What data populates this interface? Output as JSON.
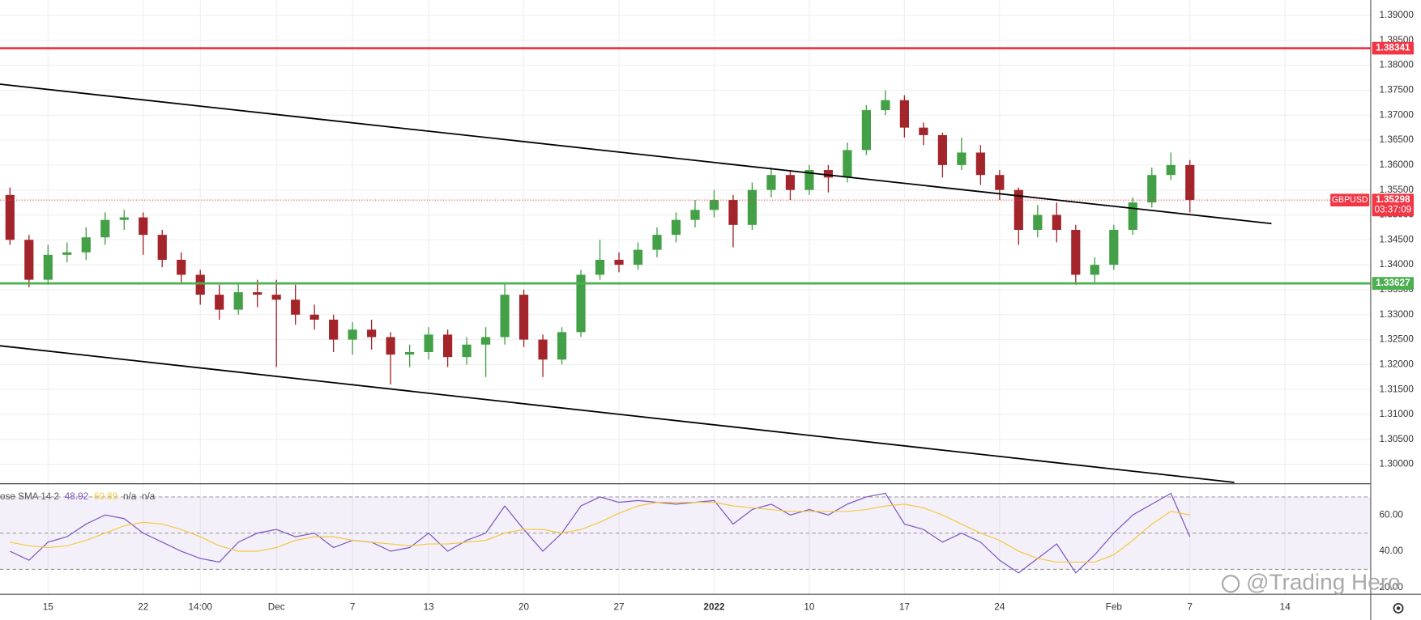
{
  "chart_data": [
    {
      "type": "candlestick",
      "symbol": "GBPUSD",
      "countdown": "03:37:09",
      "categories": [
        null,
        null,
        "15",
        null,
        null,
        null,
        null,
        "22",
        null,
        null,
        "14:00",
        null,
        null,
        null,
        "Dec",
        null,
        null,
        null,
        "7",
        null,
        null,
        null,
        "13",
        null,
        null,
        null,
        null,
        "20",
        null,
        null,
        null,
        null,
        "27",
        null,
        null,
        null,
        null,
        "2022",
        null,
        null,
        null,
        null,
        "10",
        null,
        null,
        null,
        null,
        "17",
        null,
        null,
        null,
        null,
        "24",
        null,
        null,
        null,
        null,
        null,
        "Feb",
        null,
        null,
        null,
        "7",
        null,
        null,
        null,
        null,
        "14"
      ],
      "open": [
        1.354,
        1.345,
        1.337,
        1.342,
        1.3425,
        1.3455,
        1.349,
        1.3495,
        1.346,
        1.341,
        1.338,
        1.334,
        1.331,
        1.3345,
        1.334,
        1.333,
        1.33,
        1.329,
        1.325,
        1.327,
        1.3255,
        1.322,
        1.3225,
        1.326,
        1.3215,
        1.324,
        1.3255,
        1.334,
        1.325,
        1.321,
        1.3265,
        1.338,
        1.341,
        1.34,
        1.343,
        1.346,
        1.349,
        1.351,
        1.353,
        1.348,
        1.355,
        1.358,
        1.355,
        1.359,
        1.3575,
        1.363,
        1.371,
        1.373,
        1.3675,
        1.366,
        1.36,
        1.3625,
        1.358,
        1.355,
        1.347,
        1.35,
        1.347,
        1.338,
        1.34,
        1.347,
        1.3525,
        1.358,
        1.36,
        null,
        null,
        null,
        null,
        null
      ],
      "high": [
        1.3555,
        1.346,
        1.344,
        1.3445,
        1.3475,
        1.3505,
        1.351,
        1.3505,
        1.347,
        1.3425,
        1.339,
        1.336,
        1.3365,
        1.337,
        1.337,
        1.336,
        1.332,
        1.33,
        1.3285,
        1.329,
        1.3265,
        1.324,
        1.3275,
        1.327,
        1.3255,
        1.3275,
        1.3365,
        1.335,
        1.326,
        1.3275,
        1.339,
        1.345,
        1.3425,
        1.3445,
        1.3475,
        1.3505,
        1.353,
        1.355,
        1.354,
        1.3565,
        1.3595,
        1.359,
        1.36,
        1.36,
        1.3645,
        1.372,
        1.375,
        1.374,
        1.3685,
        1.3665,
        1.3655,
        1.364,
        1.359,
        1.3555,
        1.352,
        1.3525,
        1.348,
        1.3415,
        1.348,
        1.3535,
        1.3595,
        1.3625,
        1.361,
        null,
        null,
        null,
        null,
        null
      ],
      "low": [
        1.344,
        1.3355,
        1.336,
        1.3405,
        1.341,
        1.344,
        1.347,
        1.342,
        1.3395,
        1.3365,
        1.332,
        1.329,
        1.33,
        1.3315,
        1.3195,
        1.328,
        1.327,
        1.3225,
        1.322,
        1.323,
        1.316,
        1.3195,
        1.321,
        1.3195,
        1.32,
        1.3175,
        1.324,
        1.3235,
        1.3175,
        1.32,
        1.3255,
        1.337,
        1.3385,
        1.339,
        1.3415,
        1.3445,
        1.3475,
        1.3495,
        1.3435,
        1.347,
        1.3535,
        1.353,
        1.354,
        1.3545,
        1.3565,
        1.362,
        1.37,
        1.3655,
        1.364,
        1.3575,
        1.359,
        1.356,
        1.353,
        1.344,
        1.3455,
        1.3445,
        1.336,
        1.3365,
        1.339,
        1.346,
        1.3515,
        1.357,
        1.3505,
        null,
        null,
        null,
        null,
        null
      ],
      "close": [
        1.345,
        1.337,
        1.342,
        1.3425,
        1.3455,
        1.349,
        1.3495,
        1.346,
        1.341,
        1.338,
        1.334,
        1.331,
        1.3345,
        1.334,
        1.333,
        1.33,
        1.329,
        1.325,
        1.327,
        1.3255,
        1.322,
        1.3225,
        1.326,
        1.3215,
        1.324,
        1.3255,
        1.334,
        1.325,
        1.321,
        1.3265,
        1.338,
        1.341,
        1.34,
        1.343,
        1.346,
        1.349,
        1.351,
        1.353,
        1.348,
        1.355,
        1.358,
        1.355,
        1.359,
        1.3575,
        1.363,
        1.371,
        1.373,
        1.3675,
        1.366,
        1.36,
        1.3625,
        1.358,
        1.355,
        1.347,
        1.35,
        1.347,
        1.338,
        1.34,
        1.347,
        1.3525,
        1.358,
        1.36,
        1.353,
        null,
        null,
        null,
        null,
        null
      ],
      "up_color": "#43a047",
      "down_color": "#a3242a",
      "ylim": [
        1.29619,
        1.39308
      ],
      "yticks": [
        {
          "value": 1.39,
          "label": "1.39000"
        },
        {
          "value": 1.385,
          "label": "1.38500"
        },
        {
          "value": 1.38,
          "label": "1.38000"
        },
        {
          "value": 1.375,
          "label": "1.37500"
        },
        {
          "value": 1.37,
          "label": "1.37000"
        },
        {
          "value": 1.365,
          "label": "1.36500"
        },
        {
          "value": 1.36,
          "label": "1.36000"
        },
        {
          "value": 1.355,
          "label": "1.35500"
        },
        {
          "value": 1.35,
          "label": "1.35000"
        },
        {
          "value": 1.345,
          "label": "1.34500"
        },
        {
          "value": 1.34,
          "label": "1.34000"
        },
        {
          "value": 1.335,
          "label": "1.33500"
        },
        {
          "value": 1.33,
          "label": "1.33000"
        },
        {
          "value": 1.325,
          "label": "1.32500"
        },
        {
          "value": 1.32,
          "label": "1.32000"
        },
        {
          "value": 1.315,
          "label": "1.31500"
        },
        {
          "value": 1.31,
          "label": "1.31000"
        },
        {
          "value": 1.305,
          "label": "1.30500"
        },
        {
          "value": 1.3,
          "label": "1.30000"
        }
      ],
      "levels": [
        {
          "value": 1.38341,
          "color": "#f23645"
        },
        {
          "value": 1.33627,
          "color": "#4caf50"
        }
      ],
      "last_price": 1.35298,
      "last_color": "#f23645",
      "grid": true
    },
    {
      "type": "line",
      "legend": "ose SMA 14 2",
      "readouts": [
        48.92,
        60.89,
        "n/a",
        "n/a"
      ],
      "ylim": [
        17,
        77
      ],
      "yticks": [
        {
          "value": 60,
          "label": "60.00"
        },
        {
          "value": 40,
          "label": "40.00"
        },
        {
          "value": 20,
          "label": "20.00"
        }
      ],
      "bands": [
        70,
        50,
        30
      ],
      "band_color": "#7e57c2",
      "series": [
        {
          "color": "#7e57c2",
          "values": [
            40,
            35,
            45,
            48,
            55,
            60,
            58,
            50,
            45,
            40,
            36,
            34,
            45,
            50,
            52,
            48,
            50,
            42,
            46,
            45,
            40,
            42,
            50,
            40,
            46,
            50,
            65,
            52,
            40,
            50,
            65,
            70,
            67,
            68,
            67,
            66,
            67,
            68,
            55,
            63,
            66,
            60,
            63,
            60,
            66,
            70,
            72,
            55,
            52,
            45,
            50,
            45,
            35,
            28,
            36,
            44,
            28,
            38,
            50,
            60,
            66,
            72,
            48,
            null,
            null,
            null,
            null,
            null
          ]
        },
        {
          "color": "#f7c843",
          "values": [
            45,
            43,
            42,
            43,
            46,
            50,
            54,
            56,
            55,
            52,
            48,
            43,
            40,
            40,
            42,
            46,
            48,
            48,
            46,
            45,
            44,
            43,
            44,
            44,
            45,
            46,
            50,
            52,
            52,
            50,
            52,
            56,
            61,
            65,
            67,
            67,
            67,
            67,
            65,
            64,
            63,
            62,
            62,
            62,
            62,
            63,
            65,
            66,
            64,
            60,
            55,
            50,
            46,
            40,
            36,
            34,
            34,
            34,
            38,
            46,
            55,
            62,
            60,
            null,
            null,
            null,
            null,
            null
          ]
        }
      ]
    }
  ],
  "watermark": "@Trading Hero"
}
